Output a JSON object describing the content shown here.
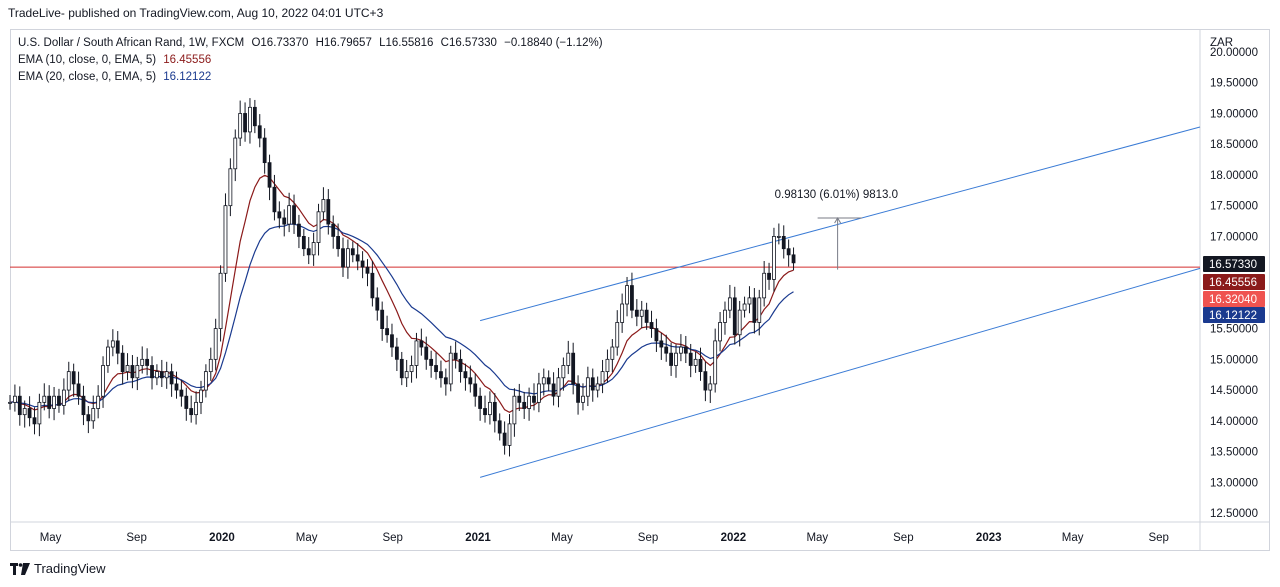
{
  "header": {
    "published": "TradeLive- published on TradingView.com, Aug 10, 2022 04:01 UTC+3"
  },
  "legend": {
    "symbol_line": "U.S. Dollar / South African Rand, 1W, FXCM",
    "open": "O16.73370",
    "high": "H16.79657",
    "low": "L16.55816",
    "close": "C16.57330",
    "change": "−0.18840 (−1.12%)",
    "ema10_label": "EMA (10, close, 0, EMA, 5)",
    "ema10_value": "16.45556",
    "ema20_label": "EMA (20, close, 0, EMA, 5)",
    "ema20_value": "16.12122"
  },
  "footer": {
    "brand": "TradingView"
  },
  "colors": {
    "up": "#131722",
    "down": "#131722",
    "ema10": "#8b1a1a",
    "ema20": "#1a3a8f",
    "channel": "#3a7bd5",
    "hline": "#d32f2f",
    "price_label": "#131722"
  },
  "chart_data": {
    "type": "candlestick",
    "currency": "ZAR",
    "ylim": [
      12.3,
      20.0
    ],
    "y_ticks": [
      "20.00000",
      "19.50000",
      "19.00000",
      "18.50000",
      "18.00000",
      "17.50000",
      "17.00000",
      "16.50000",
      "16.00000",
      "15.50000",
      "15.00000",
      "14.50000",
      "14.00000",
      "13.50000",
      "13.00000",
      "12.50000"
    ],
    "x_ticks": [
      "May",
      "Sep",
      "2020",
      "May",
      "Sep",
      "2021",
      "May",
      "Sep",
      "2022",
      "May",
      "Sep",
      "2023",
      "May",
      "Sep"
    ],
    "x_ticks_bold": [
      false,
      false,
      true,
      false,
      false,
      true,
      false,
      false,
      true,
      false,
      false,
      true,
      false,
      false
    ],
    "x_start": "2019-03-04",
    "x_end": "2023-10-30",
    "price_labels": [
      {
        "text": "16.57330",
        "value": 16.5733,
        "color": "#131722"
      },
      {
        "text": "16.45556",
        "value": 16.45556,
        "color": "#8b1a1a"
      },
      {
        "text": "16.32040",
        "value": 16.3204,
        "color": "#ef5350"
      },
      {
        "text": "16.12122",
        "value": 16.12122,
        "color": "#1a3a8f"
      }
    ],
    "horizontal_line": 16.5,
    "channel_upper": [
      [
        "2021-01-04",
        15.63
      ],
      [
        "2023-11-20",
        18.78
      ]
    ],
    "channel_lower": [
      [
        "2021-01-04",
        13.08
      ],
      [
        "2023-11-20",
        16.48
      ]
    ],
    "measure": {
      "text": "0.98130 (6.01%) 9813.0",
      "from": [
        "2022-05-30",
        16.46
      ],
      "to": [
        "2022-07-04",
        17.3
      ]
    },
    "series": [
      {
        "name": "close",
        "values": [
          14.3,
          14.4,
          14.1,
          14.2,
          14.05,
          13.95,
          14.3,
          14.4,
          14.2,
          14.4,
          14.25,
          14.5,
          14.8,
          14.6,
          14.4,
          14.1,
          14.0,
          14.2,
          14.4,
          14.9,
          15.2,
          15.3,
          15.1,
          14.8,
          14.9,
          14.7,
          14.9,
          15.0,
          14.9,
          14.7,
          14.8,
          14.7,
          14.8,
          14.6,
          14.5,
          14.4,
          14.2,
          14.1,
          14.3,
          14.5,
          14.8,
          15.0,
          15.5,
          16.4,
          17.5,
          18.1,
          18.6,
          19.0,
          18.7,
          19.1,
          18.8,
          18.6,
          18.2,
          17.8,
          17.4,
          17.3,
          17.2,
          17.5,
          17.2,
          17.0,
          16.8,
          16.7,
          16.9,
          17.4,
          17.6,
          17.2,
          17.0,
          16.8,
          16.5,
          16.8,
          16.7,
          16.6,
          16.5,
          16.4,
          16.0,
          15.8,
          15.5,
          15.4,
          15.2,
          15.0,
          14.7,
          14.8,
          14.9,
          15.3,
          15.2,
          15.0,
          14.9,
          14.8,
          14.7,
          14.6,
          15.1,
          15.0,
          14.8,
          14.7,
          14.6,
          14.4,
          14.2,
          14.1,
          14.3,
          14.0,
          13.8,
          13.6,
          13.95,
          14.4,
          14.3,
          14.2,
          14.4,
          14.3,
          14.6,
          14.7,
          14.6,
          14.4,
          14.7,
          14.9,
          15.1,
          14.6,
          14.3,
          14.4,
          14.7,
          14.5,
          14.6,
          14.8,
          15.0,
          15.2,
          15.6,
          15.9,
          16.2,
          15.8,
          15.7,
          15.8,
          15.6,
          15.5,
          15.3,
          15.2,
          15.1,
          14.9,
          15.1,
          15.2,
          15.1,
          14.9,
          15.0,
          14.8,
          14.5,
          14.6,
          15.3,
          15.6,
          15.8,
          16.0,
          15.4,
          15.8,
          15.9,
          16.0,
          15.6,
          16.0,
          16.4,
          16.3,
          17.0,
          17.0,
          16.8,
          16.7,
          16.57
        ]
      }
    ]
  }
}
